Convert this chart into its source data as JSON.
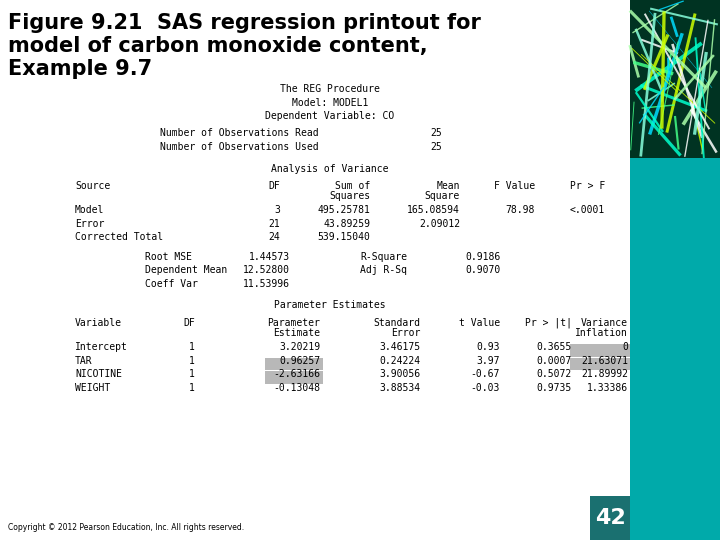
{
  "title_line1": "Figure 9.21  SAS regression printout for",
  "title_line2": "model of carbon monoxide content,",
  "title_line3": "Example 9.7",
  "title_fontsize": 15,
  "title_color": "#000000",
  "bg_color": "#ffffff",
  "teal_color": "#00aaaa",
  "sas_header": [
    "The REG Procedure",
    "Model: MODEL1",
    "Dependent Variable: CO"
  ],
  "obs_lines": [
    [
      "Number of Observations Read",
      "25"
    ],
    [
      "Number of Observations Used",
      "25"
    ]
  ],
  "anova_title": "Analysis of Variance",
  "anova_rows": [
    [
      "Model",
      "3",
      "495.25781",
      "165.08594",
      "78.98",
      "<.0001"
    ],
    [
      "Error",
      "21",
      "43.89259",
      "2.09012",
      "",
      ""
    ],
    [
      "Corrected Total",
      "24",
      "539.15040",
      "",
      "",
      ""
    ]
  ],
  "fit_stats": [
    [
      "Root MSE",
      "1.44573",
      "R-Square",
      "0.9186"
    ],
    [
      "Dependent Mean",
      "12.52800",
      "Adj R-Sq",
      "0.9070"
    ],
    [
      "Coeff Var",
      "11.53996",
      "",
      ""
    ]
  ],
  "param_title": "Parameter Estimates",
  "param_rows": [
    [
      "Intercept",
      "1",
      "3.20219",
      "3.46175",
      "0.93",
      "0.3655",
      "0",
      false,
      false
    ],
    [
      "TAR",
      "1",
      "0.96257",
      "0.24224",
      "3.97",
      "0.0007",
      "21.63071",
      false,
      true
    ],
    [
      "NICOTINE",
      "1",
      "-2.63166",
      "3.90056",
      "-0.67",
      "0.5072",
      "21.89992",
      true,
      true
    ],
    [
      "WEIGHT",
      "1",
      "-0.13048",
      "3.88534",
      "-0.03",
      "0.9735",
      "1.33386",
      true,
      false
    ]
  ],
  "highlight_color": "#b8b8b8",
  "copyright": "Copyright © 2012 Pearson Education, Inc. All rights reserved.",
  "page_num": "42",
  "page_bg": "#1a7070"
}
